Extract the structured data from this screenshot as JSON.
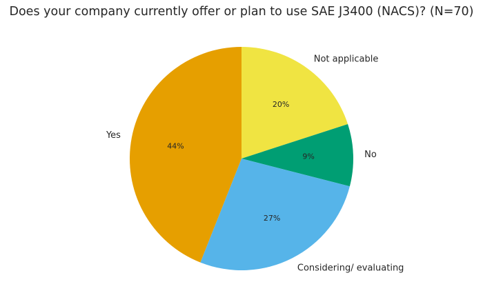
{
  "chart_data": {
    "type": "pie",
    "title": "Does your company currently offer or plan to use SAE J3400 (NACS)? (N=70)",
    "slices": [
      {
        "label": "Not applicable",
        "value": 20,
        "value_label": "20%",
        "color": "#F0E442"
      },
      {
        "label": "No",
        "value": 9,
        "value_label": "9%",
        "color": "#009E73"
      },
      {
        "label": "Considering/ evaluating",
        "value": 27,
        "value_label": "27%",
        "color": "#56B4E9"
      },
      {
        "label": "Yes",
        "value": 44,
        "value_label": "44%",
        "color": "#E69F00"
      }
    ],
    "start_angle": "12 o'clock",
    "direction": "clockwise",
    "legend": "none"
  }
}
